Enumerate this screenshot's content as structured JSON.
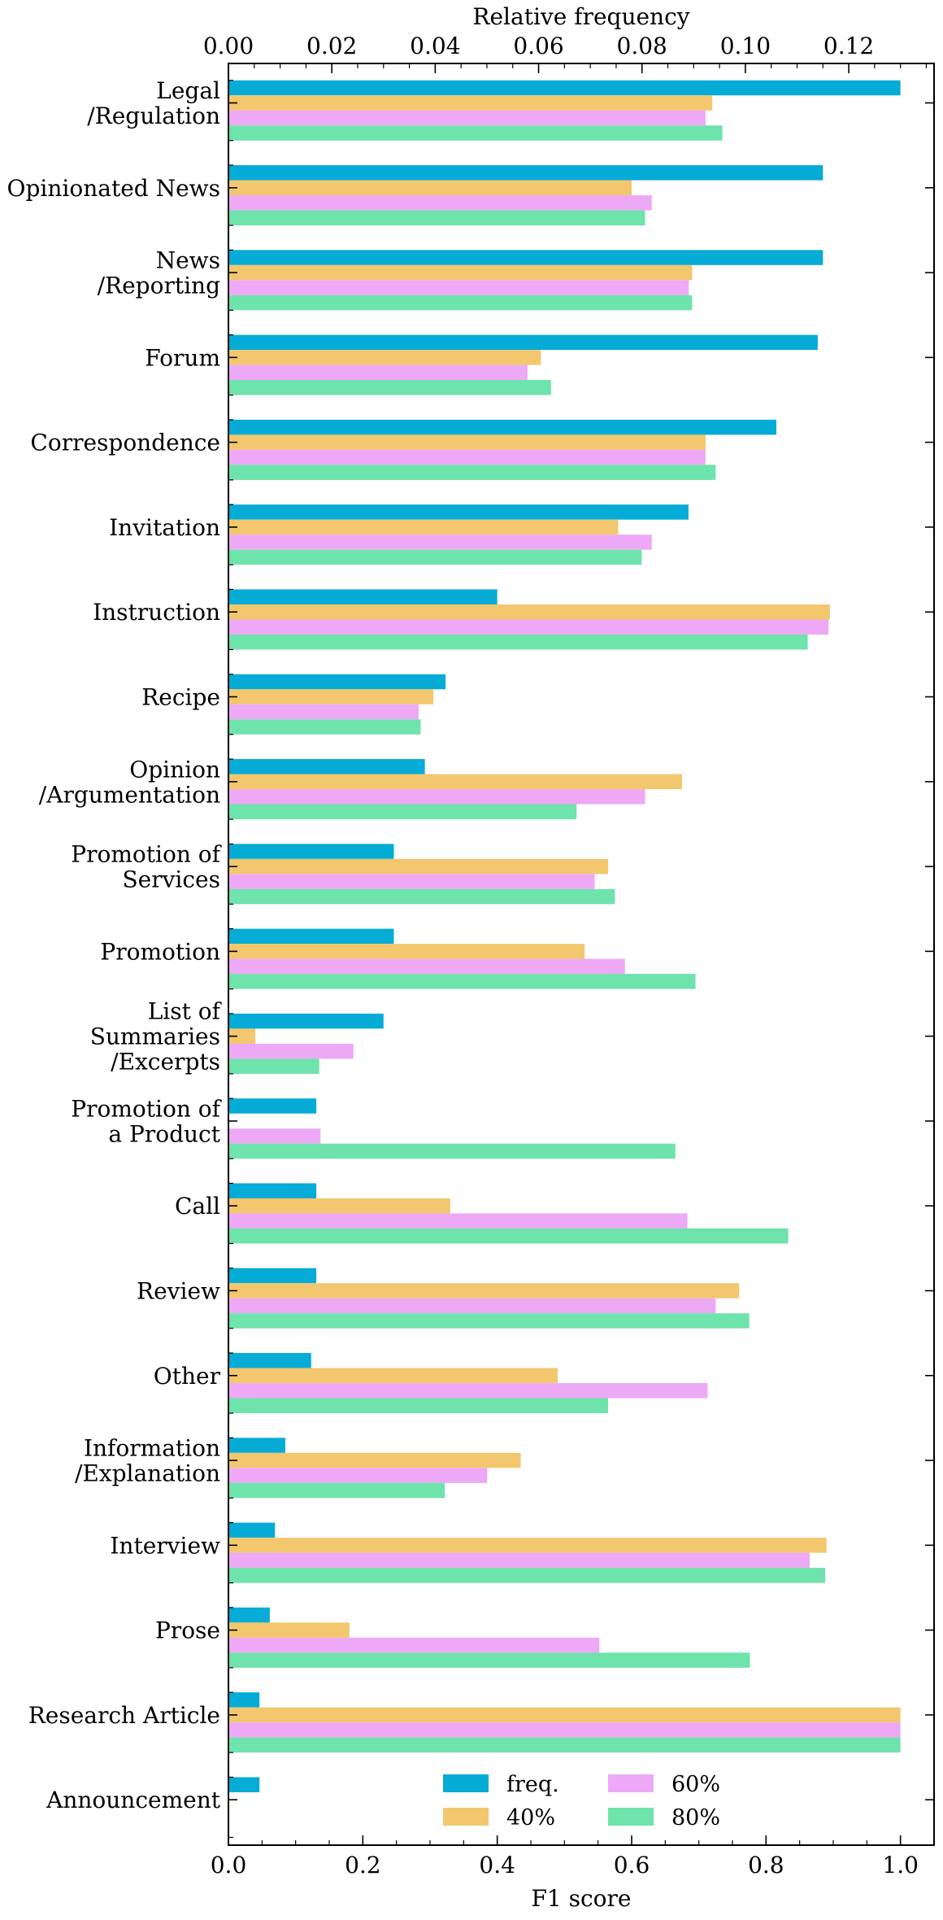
{
  "chart_data": {
    "type": "bar",
    "orientation": "horizontal",
    "xlabel": "F1 score",
    "x2label": "Relative frequency",
    "xlim": [
      0,
      1.05
    ],
    "x2lim": [
      0,
      0.1365
    ],
    "xticks": [
      "0.0",
      "0.2",
      "0.4",
      "0.6",
      "0.8",
      "1.0"
    ],
    "x2ticks": [
      "0.00",
      "0.02",
      "0.04",
      "0.06",
      "0.08",
      "0.10",
      "0.12"
    ],
    "grid": false,
    "legend_position": "bottom-center",
    "categories": [
      [
        "Legal",
        "/Regulation"
      ],
      [
        "Opinionated News"
      ],
      [
        "News",
        "/Reporting"
      ],
      [
        "Forum"
      ],
      [
        "Correspondence"
      ],
      [
        "Invitation"
      ],
      [
        "Instruction"
      ],
      [
        "Recipe"
      ],
      [
        "Opinion",
        "/Argumentation"
      ],
      [
        "Promotion of",
        "Services"
      ],
      [
        "Promotion"
      ],
      [
        "List of",
        "Summaries",
        "/Excerpts"
      ],
      [
        "Promotion of",
        "a Product"
      ],
      [
        "Call"
      ],
      [
        "Review"
      ],
      [
        "Other"
      ],
      [
        "Information",
        "/Explanation"
      ],
      [
        "Interview"
      ],
      [
        "Prose"
      ],
      [
        "Research Article"
      ],
      [
        "Announcement"
      ]
    ],
    "series": [
      {
        "name": "freq.",
        "axis": "top",
        "color": "#06abd6",
        "values": [
          0.13,
          0.115,
          0.115,
          0.114,
          0.106,
          0.089,
          0.052,
          0.042,
          0.038,
          0.032,
          0.032,
          0.03,
          0.017,
          0.017,
          0.017,
          0.016,
          0.011,
          0.009,
          0.008,
          0.006,
          0.006
        ]
      },
      {
        "name": "40%",
        "axis": "bottom",
        "color": "#f2c76e",
        "values": [
          0.72,
          0.6,
          0.69,
          0.465,
          0.71,
          0.58,
          0.895,
          0.305,
          0.675,
          0.565,
          0.53,
          0.04,
          0.0,
          0.33,
          0.76,
          0.49,
          0.435,
          0.89,
          0.18,
          1.0,
          0.0
        ]
      },
      {
        "name": "60%",
        "axis": "bottom",
        "color": "#eda9f5",
        "values": [
          0.71,
          0.63,
          0.685,
          0.445,
          0.71,
          0.63,
          0.893,
          0.283,
          0.62,
          0.545,
          0.59,
          0.186,
          0.137,
          0.683,
          0.725,
          0.713,
          0.385,
          0.865,
          0.552,
          1.0,
          0.0
        ]
      },
      {
        "name": "80%",
        "axis": "bottom",
        "color": "#6ee3ab",
        "values": [
          0.735,
          0.62,
          0.69,
          0.48,
          0.725,
          0.615,
          0.862,
          0.286,
          0.518,
          0.575,
          0.695,
          0.135,
          0.665,
          0.833,
          0.775,
          0.565,
          0.322,
          0.888,
          0.776,
          1.0,
          0.0
        ]
      }
    ]
  }
}
